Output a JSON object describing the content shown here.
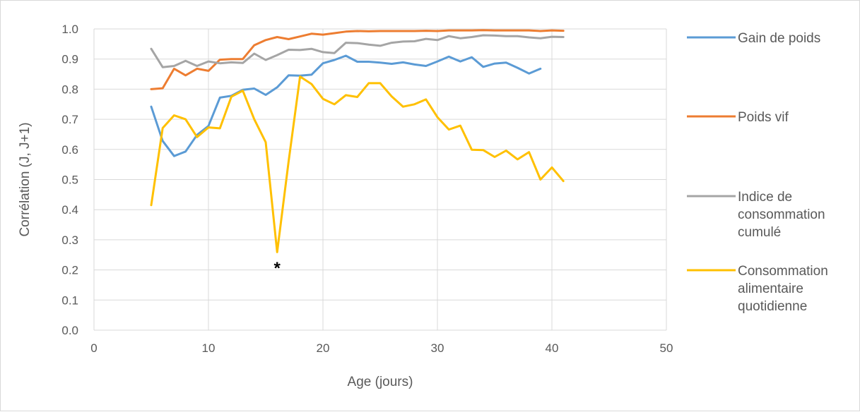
{
  "chart_data": {
    "type": "line",
    "title": "",
    "xlabel": "Age (jours)",
    "ylabel": "Corrélation (J, J+1)",
    "xlim": [
      0,
      50
    ],
    "ylim": [
      0,
      1
    ],
    "x_ticks": [
      "0",
      "10",
      "20",
      "30",
      "40",
      "50"
    ],
    "y_ticks": [
      "0.0",
      "0.1",
      "0.2",
      "0.3",
      "0.4",
      "0.5",
      "0.6",
      "0.7",
      "0.8",
      "0.9",
      "1.0"
    ],
    "grid": "vertical and horizontal major gridlines",
    "legend_position": "right",
    "annotation": {
      "text": "*",
      "x": 16,
      "y": 0.26
    },
    "series": [
      {
        "name": "Gain de poids",
        "color": "#5b9bd5",
        "x": [
          5,
          6,
          7,
          8,
          9,
          10,
          11,
          12,
          13,
          14,
          15,
          16,
          17,
          18,
          19,
          20,
          21,
          22,
          23,
          24,
          25,
          26,
          27,
          28,
          29,
          30,
          31,
          32,
          33,
          34,
          35,
          36,
          37,
          38,
          39
        ],
        "values": [
          0.742,
          0.628,
          0.578,
          0.593,
          0.648,
          0.678,
          0.772,
          0.778,
          0.798,
          0.802,
          0.781,
          0.806,
          0.846,
          0.845,
          0.848,
          0.886,
          0.897,
          0.911,
          0.891,
          0.891,
          0.888,
          0.884,
          0.889,
          0.882,
          0.877,
          0.892,
          0.908,
          0.892,
          0.906,
          0.874,
          0.885,
          0.888,
          0.871,
          0.852,
          0.868
        ]
      },
      {
        "name": "Poids vif",
        "color": "#ed7d31",
        "x": [
          5,
          6,
          7,
          8,
          9,
          10,
          11,
          12,
          13,
          14,
          15,
          16,
          17,
          18,
          19,
          20,
          21,
          22,
          23,
          24,
          25,
          26,
          27,
          28,
          29,
          30,
          31,
          32,
          33,
          34,
          35,
          36,
          37,
          38,
          39,
          40,
          41
        ],
        "values": [
          0.8,
          0.803,
          0.868,
          0.846,
          0.868,
          0.861,
          0.898,
          0.9,
          0.9,
          0.946,
          0.963,
          0.973,
          0.966,
          0.975,
          0.984,
          0.981,
          0.986,
          0.991,
          0.993,
          0.992,
          0.993,
          0.993,
          0.993,
          0.993,
          0.994,
          0.993,
          0.995,
          0.995,
          0.995,
          0.996,
          0.995,
          0.995,
          0.995,
          0.995,
          0.993,
          0.995,
          0.994
        ]
      },
      {
        "name": "Indice de consommation cumulé",
        "color": "#a5a5a5",
        "x": [
          5,
          6,
          7,
          8,
          9,
          10,
          11,
          12,
          13,
          14,
          15,
          16,
          17,
          18,
          19,
          20,
          21,
          22,
          23,
          24,
          25,
          26,
          27,
          28,
          29,
          30,
          31,
          32,
          33,
          34,
          35,
          36,
          37,
          38,
          39,
          40,
          41
        ],
        "values": [
          0.934,
          0.873,
          0.877,
          0.894,
          0.877,
          0.892,
          0.886,
          0.889,
          0.887,
          0.918,
          0.897,
          0.913,
          0.931,
          0.93,
          0.934,
          0.923,
          0.92,
          0.954,
          0.953,
          0.948,
          0.944,
          0.954,
          0.958,
          0.959,
          0.967,
          0.963,
          0.976,
          0.969,
          0.973,
          0.979,
          0.978,
          0.976,
          0.976,
          0.972,
          0.969,
          0.974,
          0.973
        ]
      },
      {
        "name": "Consommation alimentaire quotidienne",
        "color": "#ffc000",
        "x": [
          5,
          6,
          7,
          8,
          9,
          10,
          11,
          12,
          13,
          14,
          15,
          16,
          17,
          18,
          19,
          20,
          21,
          22,
          23,
          24,
          25,
          26,
          27,
          28,
          29,
          30,
          31,
          32,
          33,
          34,
          35,
          36,
          37,
          38,
          39,
          40,
          41
        ],
        "values": [
          0.415,
          0.671,
          0.713,
          0.7,
          0.641,
          0.673,
          0.67,
          0.775,
          0.795,
          0.7,
          0.624,
          0.259,
          0.56,
          0.842,
          0.817,
          0.768,
          0.75,
          0.78,
          0.774,
          0.82,
          0.82,
          0.776,
          0.742,
          0.75,
          0.766,
          0.707,
          0.666,
          0.679,
          0.599,
          0.598,
          0.575,
          0.596,
          0.567,
          0.591,
          0.5,
          0.54,
          0.495
        ]
      }
    ]
  },
  "legend": {
    "items": [
      {
        "lines": [
          "Gain de poids"
        ]
      },
      {
        "lines": [
          "Poids vif"
        ]
      },
      {
        "lines": [
          "Indice de",
          "consommation",
          "cumulé"
        ]
      },
      {
        "lines": [
          "Consommation",
          "alimentaire",
          "quotidienne"
        ]
      }
    ]
  }
}
